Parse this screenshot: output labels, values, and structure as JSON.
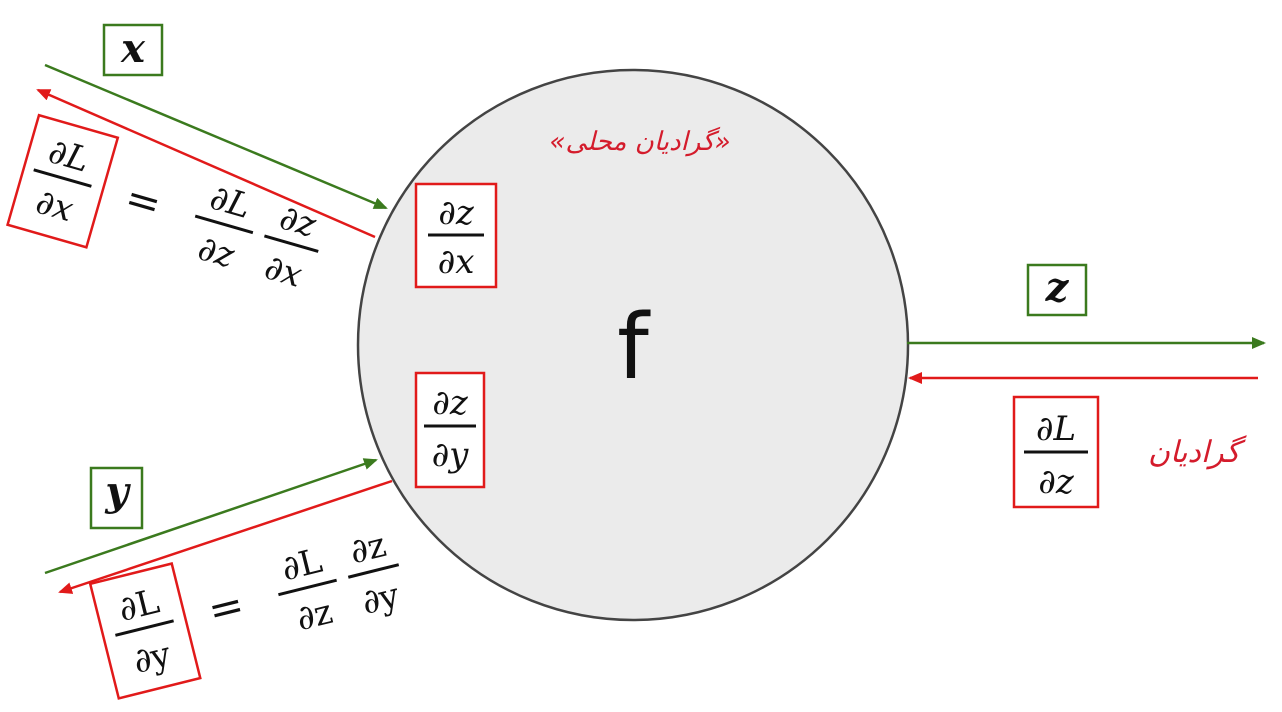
{
  "colors": {
    "forward": "#3b7a1e",
    "backward": "#e11a1a",
    "circle_fill": "#ebebeb",
    "circle_stroke": "#444444",
    "text": "#111111"
  },
  "node": {
    "label": "f"
  },
  "local_gradients_label": "«گرادیان محلی»",
  "upstream_gradient_label": "گرادیان",
  "inputs": {
    "x": {
      "label": "x",
      "local_num": "∂z",
      "local_den": "∂x"
    },
    "y": {
      "label": "y",
      "local_num": "∂z",
      "local_den": "∂y"
    }
  },
  "output": {
    "label": "z",
    "grad_num": "∂L",
    "grad_den": "∂z"
  },
  "chain_x": {
    "lhs_num": "∂L",
    "lhs_den": "∂x",
    "eq": "=",
    "f1_num": "∂L",
    "f1_den": "∂z",
    "f2_num": "∂z",
    "f2_den": "∂x"
  },
  "chain_y": {
    "lhs_num": "∂L",
    "lhs_den": "∂y",
    "eq": "=",
    "f1_num": "∂L",
    "f1_den": "∂z",
    "f2_num": "∂z",
    "f2_den": "∂y"
  }
}
